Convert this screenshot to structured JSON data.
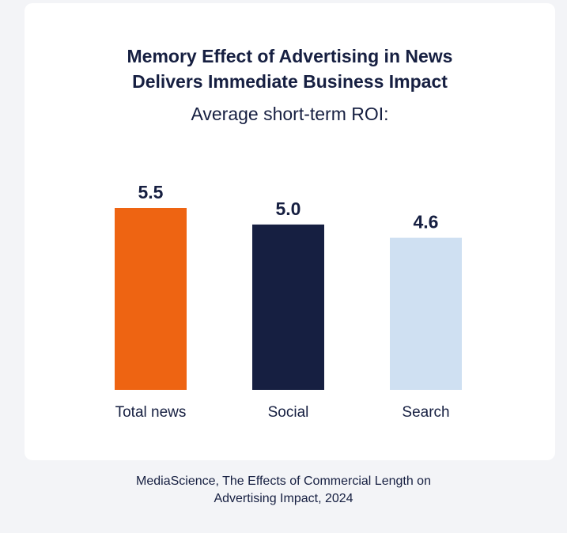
{
  "chart_data": {
    "type": "bar",
    "title_lines": [
      "Memory Effect of Advertising in News",
      "Delivers Immediate Business Impact"
    ],
    "subtitle": "Average short-term ROI:",
    "categories": [
      "Total news",
      "Social",
      "Search"
    ],
    "values": [
      5.5,
      5.0,
      4.6
    ],
    "value_labels": [
      "5.5",
      "5.0",
      "4.6"
    ],
    "colors": [
      "#ee6412",
      "#161f41",
      "#cfe0f2"
    ],
    "ylim": [
      0,
      5.5
    ],
    "xlabel": "",
    "ylabel": "",
    "grid": false
  },
  "source_lines": [
    "MediaScience, The Effects of Commercial Length on",
    "Advertising Impact, 2024"
  ]
}
